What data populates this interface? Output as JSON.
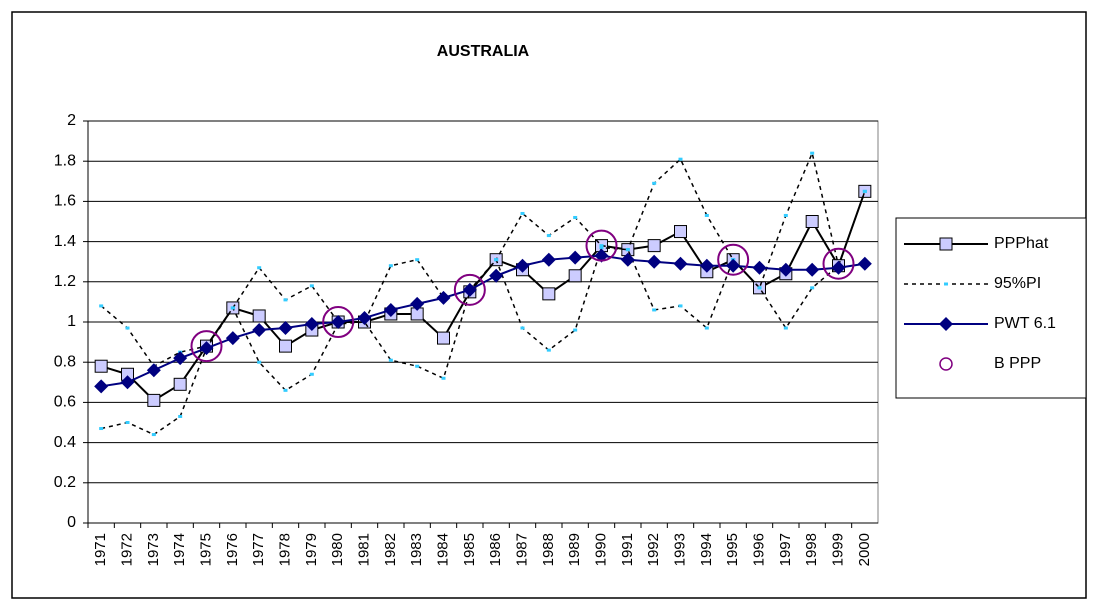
{
  "chart_data": {
    "type": "line",
    "title": "AUSTRALIA",
    "categories": [
      "1971",
      "1972",
      "1973",
      "1974",
      "1975",
      "1976",
      "1977",
      "1978",
      "1979",
      "1980",
      "1981",
      "1982",
      "1983",
      "1984",
      "1985",
      "1986",
      "1987",
      "1988",
      "1989",
      "1990",
      "1991",
      "1992",
      "1993",
      "1994",
      "1995",
      "1996",
      "1997",
      "1998",
      "1999",
      "2000"
    ],
    "series": [
      {
        "name": "PPPhat",
        "color": "#000000",
        "marker": "square",
        "marker_color": "#ccccff",
        "values": [
          0.78,
          0.74,
          0.61,
          0.69,
          0.88,
          1.07,
          1.03,
          0.88,
          0.96,
          1.0,
          1.0,
          1.04,
          1.04,
          0.92,
          1.15,
          1.31,
          1.26,
          1.14,
          1.23,
          1.38,
          1.36,
          1.38,
          1.45,
          1.25,
          1.31,
          1.17,
          1.24,
          1.5,
          1.28,
          1.65
        ]
      },
      {
        "name": "95%PI",
        "color": "#000000",
        "marker": "dot",
        "marker_color": "#33ccff",
        "dashed": true,
        "values": [
          1.08,
          0.97,
          0.78,
          0.85,
          0.88,
          1.07,
          1.27,
          1.11,
          1.18,
          1.0,
          1.0,
          1.28,
          1.31,
          1.12,
          1.16,
          1.31,
          1.54,
          1.43,
          1.52,
          1.38,
          1.36,
          1.69,
          1.81,
          1.53,
          1.31,
          1.17,
          1.53,
          1.84,
          1.28,
          1.65
        ],
        "lower": [
          0.47,
          0.5,
          0.44,
          0.53,
          0.87,
          1.07,
          0.8,
          0.66,
          0.74,
          0.99,
          1.0,
          0.81,
          0.78,
          0.72,
          1.15,
          1.31,
          0.97,
          0.86,
          0.96,
          1.37,
          1.36,
          1.06,
          1.08,
          0.97,
          1.31,
          1.17,
          0.97,
          1.17,
          1.28,
          1.65
        ]
      },
      {
        "name": "PWT 6.1",
        "color": "#000080",
        "marker": "diamond",
        "marker_color": "#000080",
        "values": [
          0.68,
          0.7,
          0.76,
          0.82,
          0.87,
          0.92,
          0.96,
          0.97,
          0.99,
          1.0,
          1.02,
          1.06,
          1.09,
          1.12,
          1.16,
          1.23,
          1.28,
          1.31,
          1.32,
          1.33,
          1.31,
          1.3,
          1.29,
          1.28,
          1.28,
          1.27,
          1.26,
          1.26,
          1.27,
          1.29
        ]
      },
      {
        "name": "B PPP",
        "color": "#800080",
        "marker": "circle",
        "line": false,
        "values": [
          null,
          null,
          null,
          null,
          0.88,
          null,
          null,
          null,
          null,
          1.0,
          null,
          null,
          null,
          null,
          1.16,
          null,
          null,
          null,
          null,
          1.38,
          null,
          null,
          null,
          null,
          1.31,
          null,
          null,
          null,
          1.29,
          null
        ]
      }
    ],
    "ylim": [
      0,
      2
    ],
    "yticks": [
      0,
      0.2,
      0.4,
      0.6,
      0.8,
      1,
      1.2,
      1.4,
      1.6,
      1.8,
      2
    ],
    "grid": true,
    "legend": "right"
  }
}
